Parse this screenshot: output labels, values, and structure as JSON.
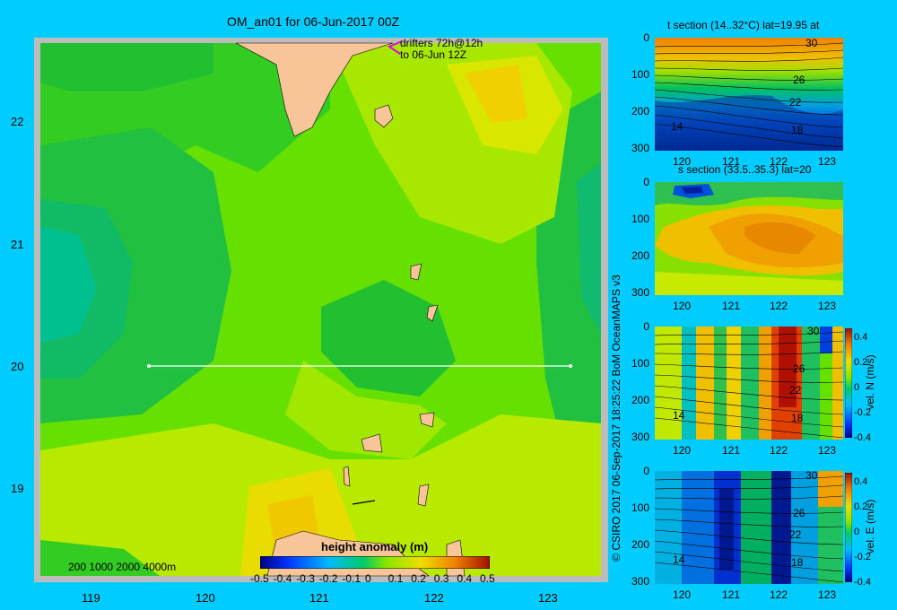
{
  "map": {
    "title": "OM_an01 for 06-Jun-2017 00Z",
    "drifters_line1": "drifters 72h@12h",
    "drifters_line2": "to 06-Jun 12Z",
    "x_ticks": [
      "119",
      "120",
      "121",
      "122",
      "123"
    ],
    "y_ticks": [
      "22",
      "21",
      "20",
      "19"
    ],
    "depth_legend": "200  1000  2000  4000m",
    "colorbar_title": "height anomaly  (m)",
    "colorbar_ticks": [
      "-0.5",
      "-0.4",
      "-0.3",
      "-0.2",
      "-0.1",
      "0",
      "0.1",
      "0.2",
      "0.3",
      "0.4",
      "0.5"
    ],
    "colorbar_range": [
      -0.5,
      0.5
    ],
    "section_latitude": 20,
    "section_lon_range": [
      119.5,
      123.2
    ],
    "colors": {
      "land": "#f7c597",
      "frame": "#bcbcbc",
      "section_line": "#ffffff",
      "drifter": "#e000e0"
    }
  },
  "panels": {
    "temperature": {
      "title": "t section (14..32°C) lat=19.95 at",
      "contour_labels": [
        "30",
        "26",
        "22",
        "18",
        "14"
      ]
    },
    "salinity": {
      "title": "s section (33.5..35.3) lat=20"
    },
    "vel_north": {
      "side_label": "vel. N  (m/s)",
      "contour_labels": [
        "30",
        "26",
        "22",
        "18",
        "14"
      ]
    },
    "vel_east": {
      "side_label": "vel. E  (m/s)",
      "contour_labels": [
        "30",
        "26",
        "22",
        "18",
        "14"
      ]
    },
    "x_ticks": [
      "120",
      "121",
      "122",
      "123"
    ],
    "y_ticks": [
      "0",
      "100",
      "200",
      "300"
    ],
    "vel_colorbar_ticks": [
      "0.4",
      "0.2",
      "0",
      "-0.2",
      "-0.4"
    ]
  },
  "credit": "© CSIRO 2017   06-Sep-2017 18:25:22 BoM OceanMAPS v3"
}
